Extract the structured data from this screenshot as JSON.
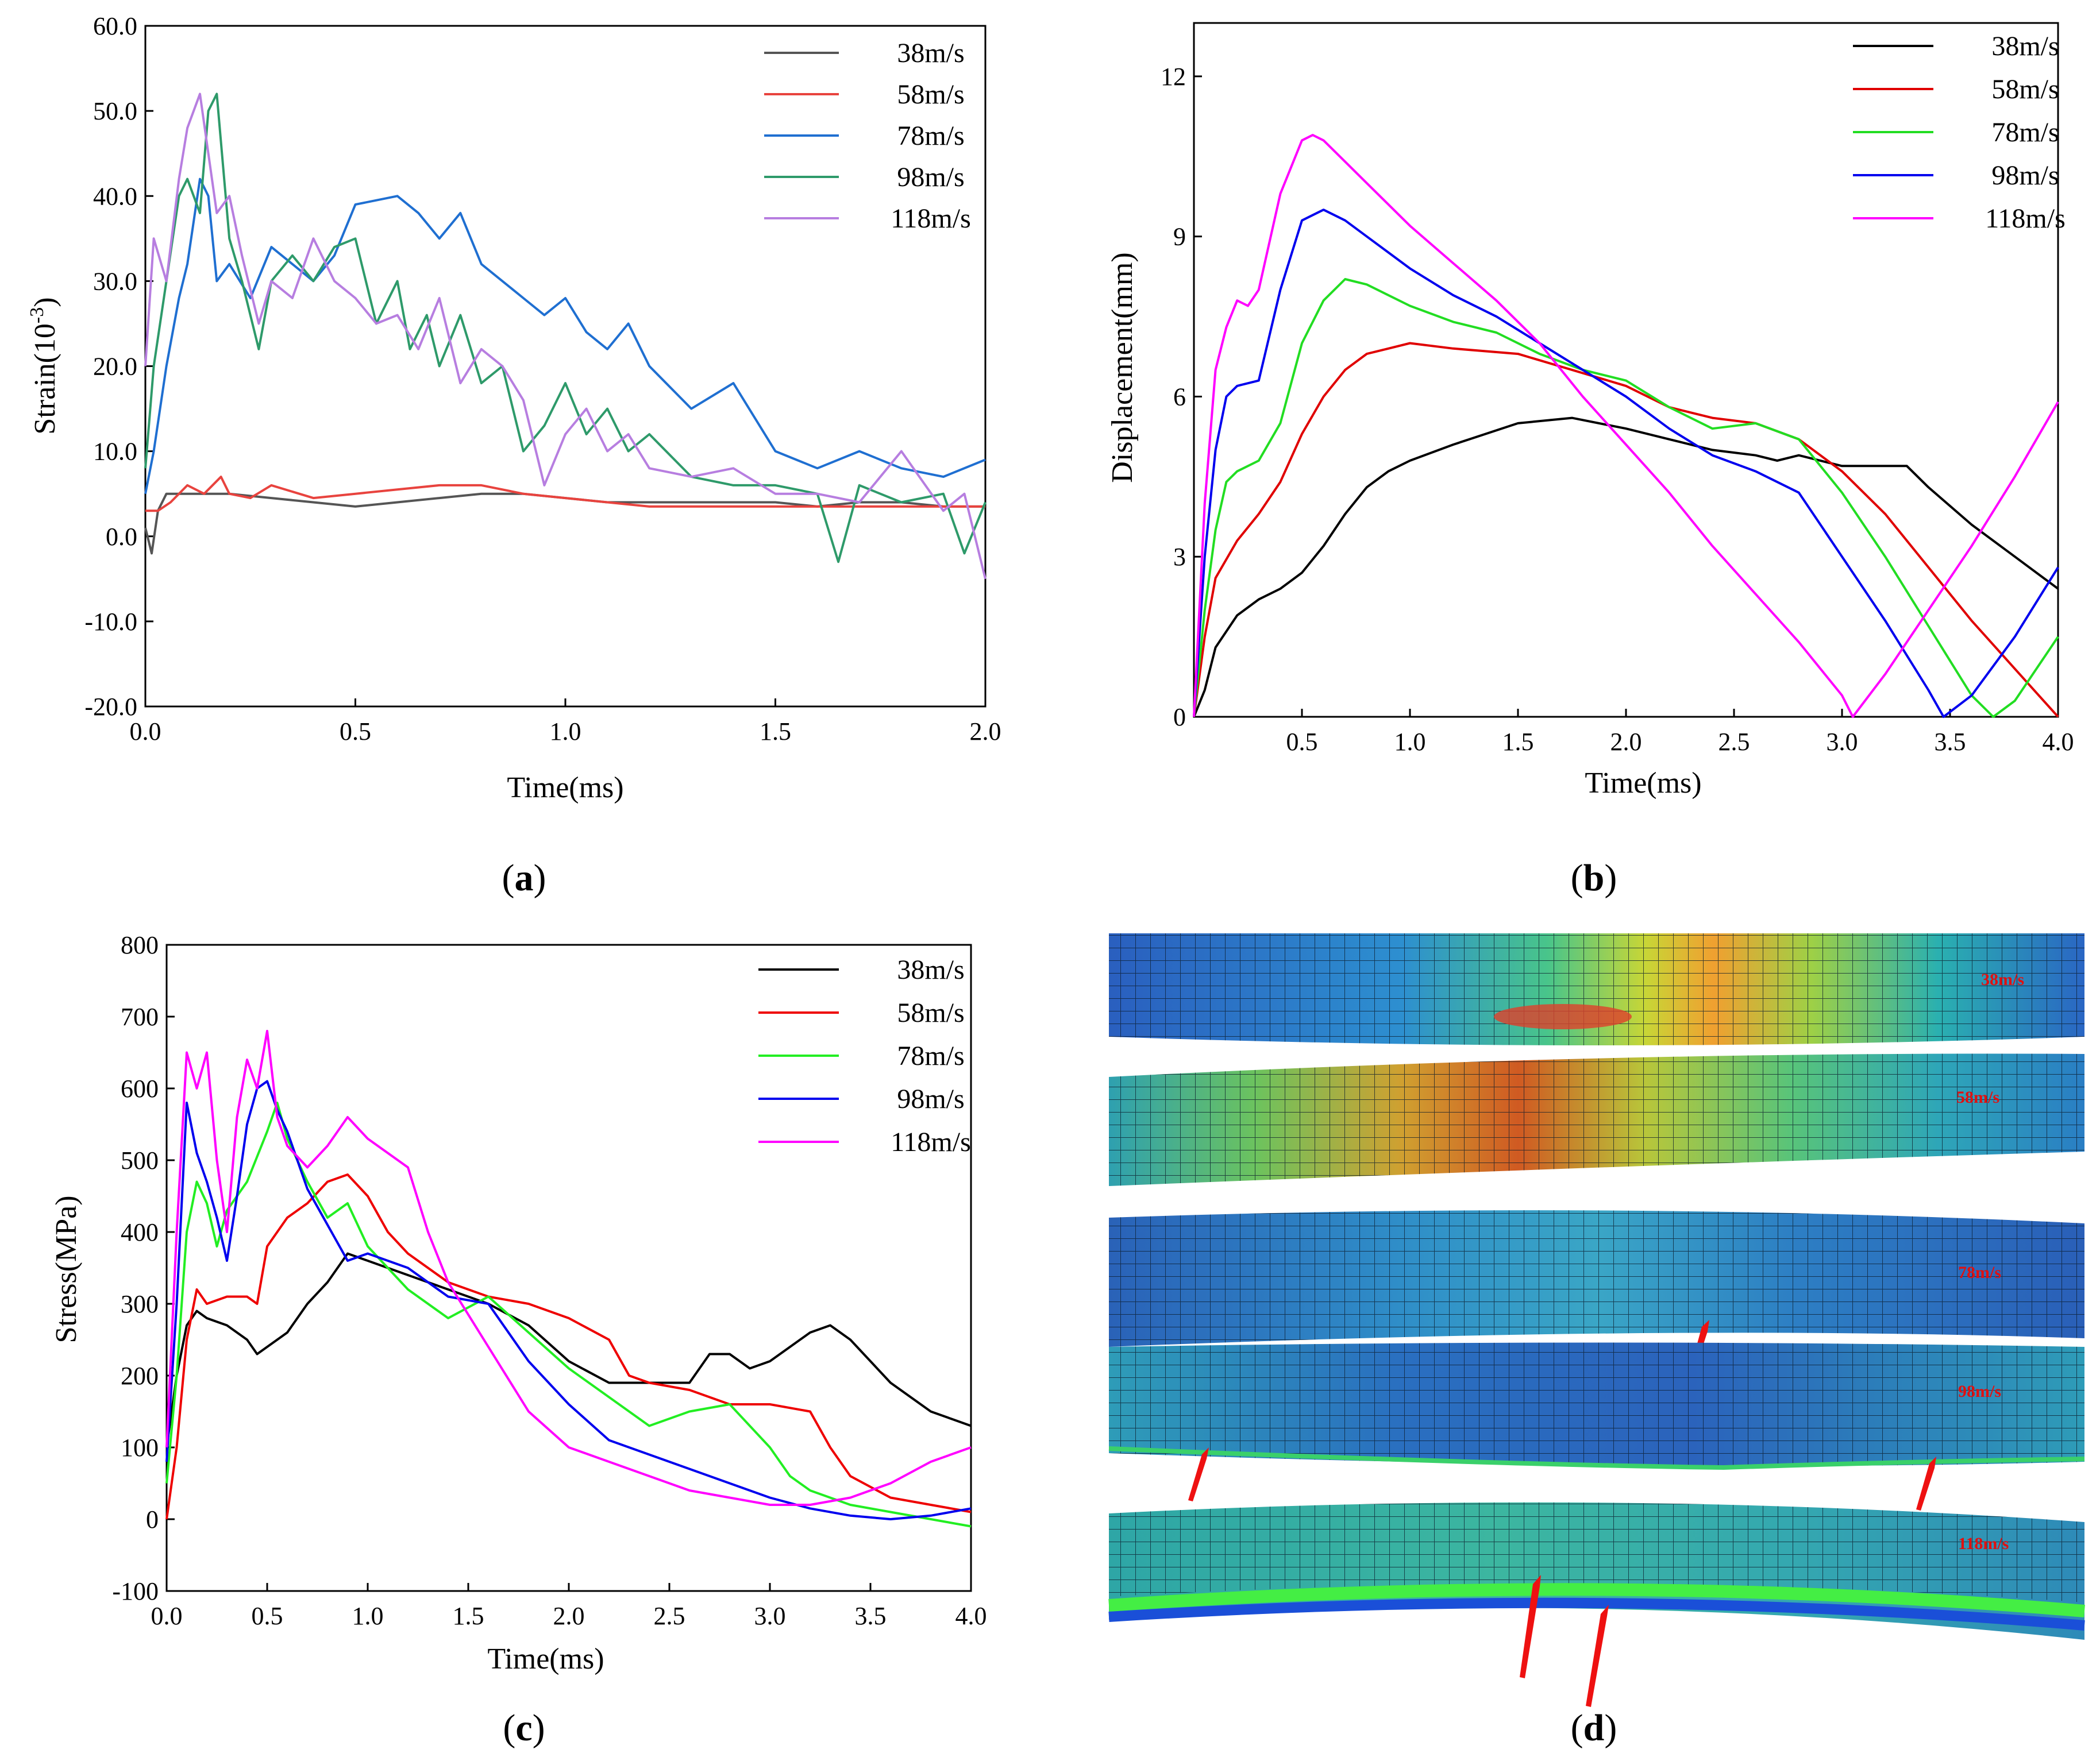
{
  "chart_data": [
    {
      "id": "a",
      "type": "line",
      "xlabel": "Time(ms)",
      "ylabel_main": "Strain(10",
      "ylabel_sup": "-3",
      "ylabel_close": ")",
      "xlim": [
        0.0,
        2.0
      ],
      "ylim": [
        -20.0,
        60.0
      ],
      "xticks": [
        "0.0",
        "0.5",
        "1.0",
        "1.5",
        "2.0"
      ],
      "yticks": [
        "-20.0",
        "-10.0",
        "0.0",
        "10.0",
        "20.0",
        "30.0",
        "40.0",
        "50.0",
        "60.0"
      ],
      "legend": "top-right",
      "series": [
        {
          "name": "38m/s",
          "color": "#555555",
          "x": [
            0,
            0.015,
            0.03,
            0.05,
            0.08,
            0.12,
            0.2,
            0.3,
            0.4,
            0.5,
            0.6,
            0.7,
            0.8,
            0.9,
            1.0,
            1.1,
            1.2,
            1.3,
            1.4,
            1.5,
            1.6,
            1.7,
            1.8,
            1.9,
            2.0
          ],
          "y": [
            1,
            -2,
            3,
            5,
            5,
            5,
            5,
            4.5,
            4,
            3.5,
            4,
            4.5,
            5,
            5,
            4.5,
            4,
            4,
            4,
            4,
            4,
            3.5,
            4,
            4,
            3.5,
            3.5
          ]
        },
        {
          "name": "58m/s",
          "color": "#e8433e",
          "x": [
            0,
            0.03,
            0.06,
            0.1,
            0.14,
            0.18,
            0.2,
            0.25,
            0.3,
            0.4,
            0.5,
            0.6,
            0.7,
            0.8,
            0.9,
            1.0,
            1.2,
            1.4,
            1.6,
            1.8,
            2.0
          ],
          "y": [
            3,
            3,
            4,
            6,
            5,
            7,
            5,
            4.5,
            6,
            4.5,
            5,
            5.5,
            6,
            6,
            5,
            4.5,
            3.5,
            3.5,
            3.5,
            3.5,
            3.5
          ]
        },
        {
          "name": "78m/s",
          "color": "#1f6fd1",
          "x": [
            0,
            0.02,
            0.05,
            0.08,
            0.1,
            0.13,
            0.15,
            0.17,
            0.2,
            0.25,
            0.3,
            0.35,
            0.4,
            0.45,
            0.5,
            0.6,
            0.65,
            0.7,
            0.75,
            0.8,
            0.85,
            0.9,
            0.95,
            1.0,
            1.05,
            1.1,
            1.15,
            1.2,
            1.3,
            1.4,
            1.5,
            1.6,
            1.7,
            1.8,
            1.9,
            2.0
          ],
          "y": [
            5,
            10,
            20,
            28,
            32,
            42,
            40,
            30,
            32,
            28,
            34,
            32,
            30,
            33,
            39,
            40,
            38,
            35,
            38,
            32,
            30,
            28,
            26,
            28,
            24,
            22,
            25,
            20,
            15,
            18,
            10,
            8,
            10,
            8,
            7,
            9
          ]
        },
        {
          "name": "98m/s",
          "color": "#2e9a6a",
          "x": [
            0,
            0.02,
            0.05,
            0.08,
            0.1,
            0.13,
            0.15,
            0.17,
            0.2,
            0.23,
            0.27,
            0.3,
            0.35,
            0.4,
            0.45,
            0.5,
            0.55,
            0.6,
            0.63,
            0.67,
            0.7,
            0.75,
            0.8,
            0.85,
            0.9,
            0.95,
            1.0,
            1.05,
            1.1,
            1.15,
            1.2,
            1.3,
            1.4,
            1.5,
            1.6,
            1.65,
            1.7,
            1.8,
            1.9,
            1.95,
            2.0
          ],
          "y": [
            8,
            20,
            30,
            40,
            42,
            38,
            50,
            52,
            35,
            30,
            22,
            30,
            33,
            30,
            34,
            35,
            25,
            30,
            22,
            26,
            20,
            26,
            18,
            20,
            10,
            13,
            18,
            12,
            15,
            10,
            12,
            7,
            6,
            6,
            5,
            -3,
            6,
            4,
            5,
            -2,
            4
          ]
        },
        {
          "name": "118m/s",
          "color": "#b77ee0",
          "x": [
            0,
            0.02,
            0.05,
            0.08,
            0.1,
            0.13,
            0.15,
            0.17,
            0.2,
            0.23,
            0.27,
            0.3,
            0.35,
            0.4,
            0.45,
            0.5,
            0.55,
            0.6,
            0.65,
            0.7,
            0.75,
            0.8,
            0.85,
            0.9,
            0.95,
            1.0,
            1.05,
            1.1,
            1.15,
            1.2,
            1.3,
            1.4,
            1.5,
            1.6,
            1.7,
            1.8,
            1.9,
            1.95,
            2.0
          ],
          "y": [
            20,
            35,
            30,
            42,
            48,
            52,
            45,
            38,
            40,
            33,
            25,
            30,
            28,
            35,
            30,
            28,
            25,
            26,
            22,
            28,
            18,
            22,
            20,
            16,
            6,
            12,
            15,
            10,
            12,
            8,
            7,
            8,
            5,
            5,
            4,
            10,
            3,
            5,
            -5
          ]
        }
      ]
    },
    {
      "id": "b",
      "type": "line",
      "xlabel": "Time(ms)",
      "ylabel": "Displacement(mm)",
      "xlim": [
        0.0,
        4.0
      ],
      "ylim": [
        0,
        13
      ],
      "xticks": [
        "0.5",
        "1.0",
        "1.5",
        "2.0",
        "2.5",
        "3.0",
        "3.5",
        "4.0"
      ],
      "yticks": [
        "0",
        "3",
        "6",
        "9",
        "12"
      ],
      "legend": "top-right",
      "series": [
        {
          "name": "38m/s",
          "color": "#000000",
          "x": [
            0,
            0.05,
            0.1,
            0.2,
            0.3,
            0.4,
            0.5,
            0.6,
            0.7,
            0.8,
            0.9,
            1.0,
            1.2,
            1.5,
            1.75,
            2.0,
            2.2,
            2.4,
            2.6,
            2.7,
            2.8,
            3.0,
            3.2,
            3.3,
            3.4,
            3.6,
            3.8,
            4.0
          ],
          "y": [
            0,
            0.5,
            1.3,
            1.9,
            2.2,
            2.4,
            2.7,
            3.2,
            3.8,
            4.3,
            4.6,
            4.8,
            5.1,
            5.5,
            5.6,
            5.4,
            5.2,
            5.0,
            4.9,
            4.8,
            4.9,
            4.7,
            4.7,
            4.7,
            4.3,
            3.6,
            3.0,
            2.4
          ]
        },
        {
          "name": "58m/s",
          "color": "#e00000",
          "x": [
            0,
            0.05,
            0.1,
            0.2,
            0.3,
            0.4,
            0.5,
            0.6,
            0.7,
            0.8,
            1.0,
            1.2,
            1.5,
            2.0,
            2.2,
            2.4,
            2.6,
            2.8,
            3.0,
            3.2,
            3.4,
            3.6,
            3.8,
            4.0
          ],
          "y": [
            0,
            1.5,
            2.6,
            3.3,
            3.8,
            4.4,
            5.3,
            6.0,
            6.5,
            6.8,
            7.0,
            6.9,
            6.8,
            6.2,
            5.8,
            5.6,
            5.5,
            5.2,
            4.6,
            3.8,
            2.8,
            1.8,
            0.9,
            0.0
          ]
        },
        {
          "name": "78m/s",
          "color": "#22dd22",
          "x": [
            0,
            0.05,
            0.1,
            0.15,
            0.2,
            0.3,
            0.4,
            0.5,
            0.6,
            0.7,
            0.8,
            1.0,
            1.2,
            1.4,
            1.6,
            1.8,
            2.0,
            2.2,
            2.4,
            2.6,
            2.8,
            3.0,
            3.2,
            3.4,
            3.6,
            3.7,
            3.8,
            4.0
          ],
          "y": [
            0,
            2.0,
            3.5,
            4.4,
            4.6,
            4.8,
            5.5,
            7.0,
            7.8,
            8.2,
            8.1,
            7.7,
            7.4,
            7.2,
            6.8,
            6.5,
            6.3,
            5.8,
            5.4,
            5.5,
            5.2,
            4.2,
            3.0,
            1.7,
            0.4,
            0.0,
            0.3,
            1.5
          ]
        },
        {
          "name": "98m/s",
          "color": "#0000ee",
          "x": [
            0,
            0.05,
            0.1,
            0.15,
            0.2,
            0.3,
            0.4,
            0.5,
            0.6,
            0.7,
            0.8,
            1.0,
            1.2,
            1.4,
            1.6,
            1.8,
            2.0,
            2.2,
            2.4,
            2.6,
            2.8,
            3.0,
            3.2,
            3.4,
            3.47,
            3.6,
            3.8,
            4.0
          ],
          "y": [
            0,
            3.0,
            5.0,
            6.0,
            6.2,
            6.3,
            8.0,
            9.3,
            9.5,
            9.3,
            9.0,
            8.4,
            7.9,
            7.5,
            7.0,
            6.5,
            6.0,
            5.4,
            4.9,
            4.6,
            4.2,
            3.0,
            1.8,
            0.5,
            0.0,
            0.4,
            1.5,
            2.8
          ]
        },
        {
          "name": "118m/s",
          "color": "#ff00ff",
          "x": [
            0,
            0.05,
            0.1,
            0.15,
            0.2,
            0.25,
            0.3,
            0.4,
            0.5,
            0.55,
            0.6,
            0.7,
            0.8,
            1.0,
            1.2,
            1.4,
            1.6,
            1.8,
            2.0,
            2.2,
            2.4,
            2.6,
            2.8,
            3.0,
            3.05,
            3.2,
            3.4,
            3.6,
            3.8,
            4.0
          ],
          "y": [
            0,
            4.0,
            6.5,
            7.3,
            7.8,
            7.7,
            8.0,
            9.8,
            10.8,
            10.9,
            10.8,
            10.4,
            10.0,
            9.2,
            8.5,
            7.8,
            7.0,
            6.0,
            5.1,
            4.2,
            3.2,
            2.3,
            1.4,
            0.4,
            0.0,
            0.8,
            2.0,
            3.2,
            4.5,
            5.9
          ]
        }
      ]
    },
    {
      "id": "c",
      "type": "line",
      "xlabel": "Time(ms)",
      "ylabel": "Stress(MPa)",
      "xlim": [
        0.0,
        4.0
      ],
      "ylim": [
        -100,
        800
      ],
      "xticks": [
        "0.0",
        "0.5",
        "1.0",
        "1.5",
        "2.0",
        "2.5",
        "3.0",
        "3.5",
        "4.0"
      ],
      "yticks": [
        "-100",
        "0",
        "100",
        "200",
        "300",
        "400",
        "500",
        "600",
        "700",
        "800"
      ],
      "legend": "top-right",
      "series": [
        {
          "name": "38m/s",
          "color": "#000000",
          "x": [
            0,
            0.05,
            0.1,
            0.15,
            0.2,
            0.3,
            0.4,
            0.45,
            0.5,
            0.6,
            0.7,
            0.8,
            0.9,
            1.0,
            1.2,
            1.4,
            1.6,
            1.8,
            2.0,
            2.2,
            2.4,
            2.6,
            2.7,
            2.8,
            2.9,
            3.0,
            3.1,
            3.2,
            3.3,
            3.4,
            3.5,
            3.6,
            3.7,
            3.8,
            3.9,
            4.0
          ],
          "y": [
            100,
            200,
            270,
            290,
            280,
            270,
            250,
            230,
            240,
            260,
            300,
            330,
            370,
            360,
            340,
            320,
            300,
            270,
            220,
            190,
            190,
            190,
            230,
            230,
            210,
            220,
            240,
            260,
            270,
            250,
            220,
            190,
            170,
            150,
            140,
            130
          ]
        },
        {
          "name": "58m/s",
          "color": "#ee0000",
          "x": [
            0,
            0.05,
            0.1,
            0.15,
            0.2,
            0.3,
            0.4,
            0.45,
            0.5,
            0.6,
            0.7,
            0.8,
            0.9,
            1.0,
            1.1,
            1.2,
            1.4,
            1.6,
            1.8,
            2.0,
            2.2,
            2.3,
            2.4,
            2.6,
            2.8,
            3.0,
            3.2,
            3.3,
            3.4,
            3.6,
            3.8,
            4.0
          ],
          "y": [
            0,
            100,
            250,
            320,
            300,
            310,
            310,
            300,
            380,
            420,
            440,
            470,
            480,
            450,
            400,
            370,
            330,
            310,
            300,
            280,
            250,
            200,
            190,
            180,
            160,
            160,
            150,
            100,
            60,
            30,
            20,
            10
          ]
        },
        {
          "name": "78m/s",
          "color": "#22ee22",
          "x": [
            0,
            0.05,
            0.1,
            0.15,
            0.2,
            0.25,
            0.3,
            0.4,
            0.5,
            0.55,
            0.6,
            0.7,
            0.8,
            0.9,
            1.0,
            1.2,
            1.4,
            1.6,
            1.8,
            2.0,
            2.2,
            2.4,
            2.6,
            2.8,
            3.0,
            3.1,
            3.2,
            3.4,
            3.6,
            3.8,
            4.0
          ],
          "y": [
            50,
            200,
            400,
            470,
            440,
            380,
            430,
            470,
            540,
            580,
            530,
            470,
            420,
            440,
            380,
            320,
            280,
            310,
            260,
            210,
            170,
            130,
            150,
            160,
            100,
            60,
            40,
            20,
            10,
            0,
            -10
          ]
        },
        {
          "name": "98m/s",
          "color": "#0000ee",
          "x": [
            0,
            0.05,
            0.1,
            0.15,
            0.2,
            0.25,
            0.3,
            0.35,
            0.4,
            0.45,
            0.5,
            0.55,
            0.6,
            0.7,
            0.8,
            0.9,
            1.0,
            1.1,
            1.2,
            1.4,
            1.6,
            1.8,
            2.0,
            2.2,
            2.4,
            2.6,
            2.8,
            3.0,
            3.2,
            3.4,
            3.6,
            3.8,
            4.0
          ],
          "y": [
            80,
            300,
            580,
            510,
            470,
            420,
            360,
            450,
            550,
            600,
            610,
            570,
            540,
            460,
            410,
            360,
            370,
            360,
            350,
            310,
            300,
            220,
            160,
            110,
            90,
            70,
            50,
            30,
            15,
            5,
            0,
            5,
            15
          ]
        },
        {
          "name": "118m/s",
          "color": "#ff00ff",
          "x": [
            0,
            0.05,
            0.1,
            0.15,
            0.2,
            0.25,
            0.3,
            0.35,
            0.4,
            0.45,
            0.5,
            0.55,
            0.6,
            0.7,
            0.8,
            0.9,
            1.0,
            1.1,
            1.2,
            1.3,
            1.4,
            1.6,
            1.8,
            2.0,
            2.2,
            2.4,
            2.6,
            2.8,
            3.0,
            3.2,
            3.4,
            3.6,
            3.8,
            4.0
          ],
          "y": [
            100,
            400,
            650,
            600,
            650,
            500,
            400,
            560,
            640,
            600,
            680,
            560,
            520,
            490,
            520,
            560,
            530,
            510,
            490,
            400,
            330,
            240,
            150,
            100,
            80,
            60,
            40,
            30,
            20,
            20,
            30,
            50,
            80,
            100
          ]
        }
      ]
    }
  ],
  "panels": {
    "a": {
      "label": "a"
    },
    "b": {
      "label": "b"
    },
    "c": {
      "label": "c"
    },
    "d": {
      "label": "d"
    }
  },
  "panel_d": {
    "band_labels": [
      "38m/s",
      "58m/s",
      "78m/s",
      "98m/s",
      "118m/s"
    ]
  }
}
